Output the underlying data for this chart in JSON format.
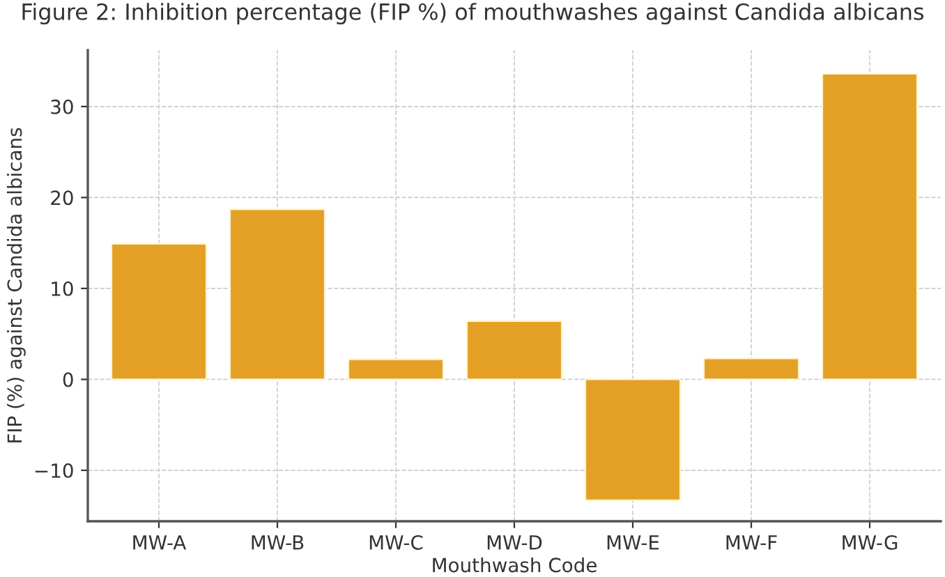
{
  "chart_data": {
    "type": "bar",
    "title": "Figure 2: Inhibition percentage (FIP %) of mouthwashes against Candida albicans",
    "xlabel": "Mouthwash Code",
    "ylabel": "FIP (%) against Candida albicans",
    "categories": [
      "MW-A",
      "MW-B",
      "MW-C",
      "MW-D",
      "MW-E",
      "MW-F",
      "MW-G"
    ],
    "values": [
      14.9,
      18.7,
      2.2,
      6.4,
      -13.3,
      2.3,
      33.6
    ],
    "color": "#e3a024",
    "ylim": [
      -15.6,
      36.2
    ],
    "yticks": [
      {
        "value": -10,
        "label": "−10"
      },
      0,
      10,
      20,
      30
    ],
    "grid": true
  }
}
